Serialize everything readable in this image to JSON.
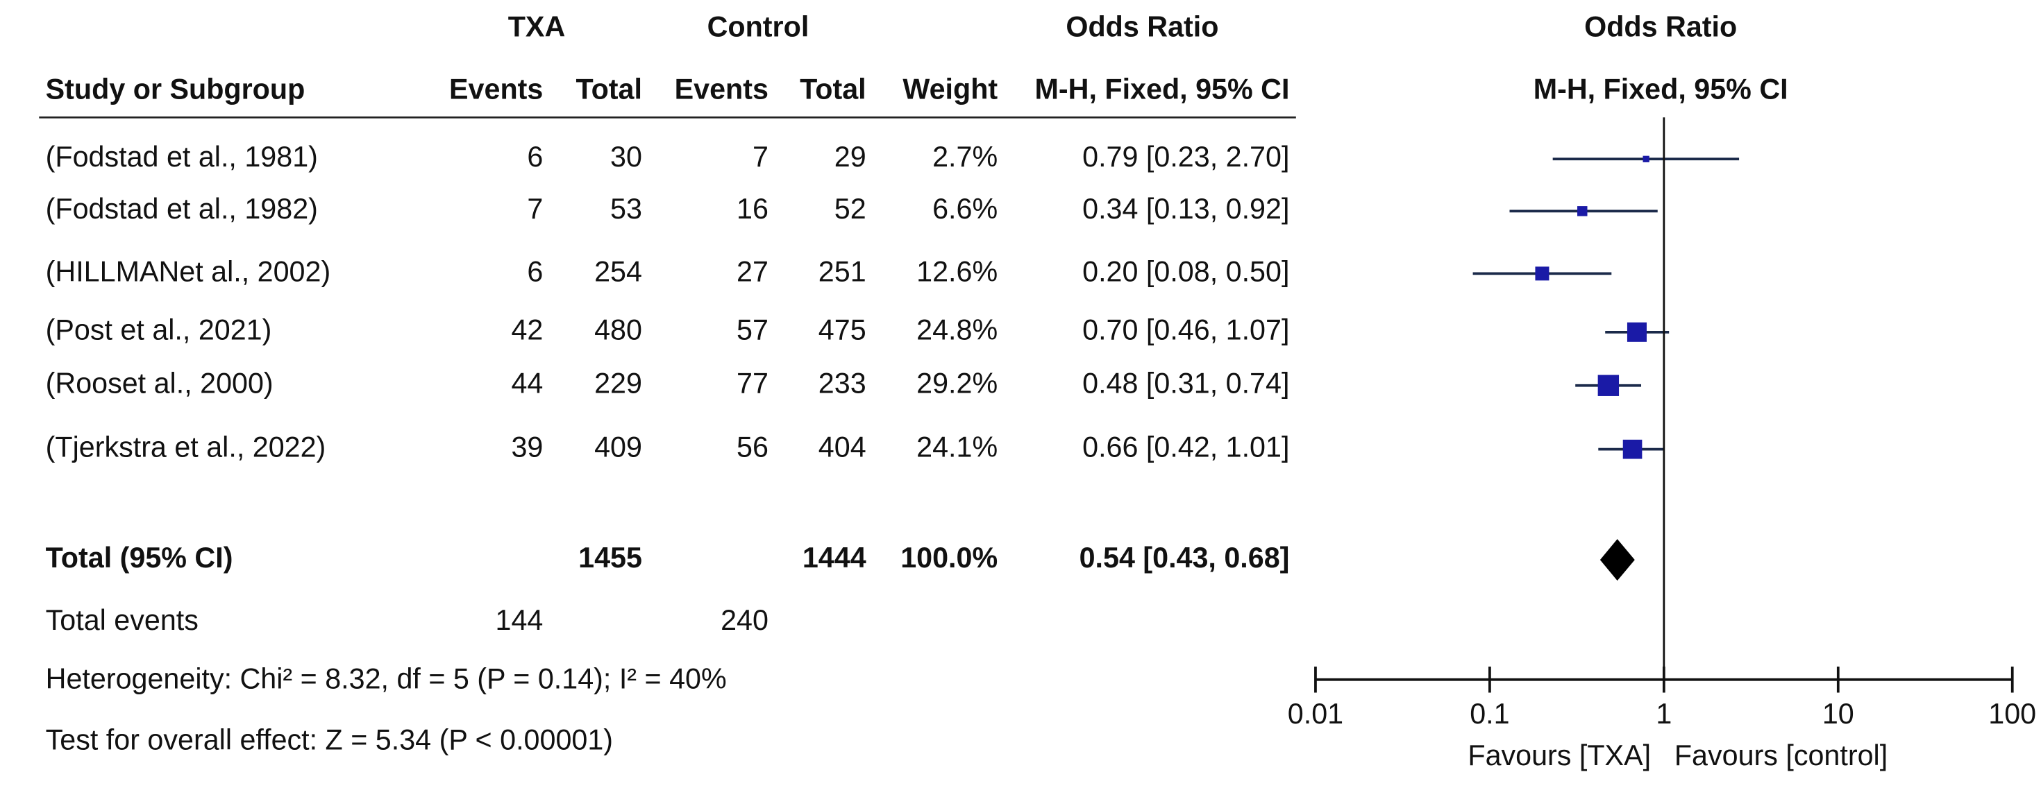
{
  "chart_data": {
    "type": "forest",
    "headers": {
      "group_txa": "TXA",
      "group_control": "Control",
      "effect_table": "Odds Ratio",
      "effect_plot": "Odds Ratio",
      "study": "Study or Subgroup",
      "txa_events": "Events",
      "txa_total": "Total",
      "control_events": "Events",
      "control_total": "Total",
      "weight": "Weight",
      "method_table": "M-H, Fixed, 95% CI",
      "method_plot": "M-H, Fixed, 95% CI"
    },
    "studies": [
      "(Fodstad et al., 1981)",
      "(Fodstad et al., 1982)",
      "(HILLMANet al., 2002)",
      "(Post et al., 2021)",
      "(Rooset al., 2000)",
      "(Tjerkstra et al., 2022)"
    ],
    "txa_events": [
      6,
      7,
      6,
      42,
      44,
      39
    ],
    "txa_total": [
      30,
      53,
      254,
      480,
      229,
      409
    ],
    "control_events": [
      7,
      16,
      27,
      57,
      77,
      56
    ],
    "control_total": [
      29,
      52,
      251,
      475,
      233,
      404
    ],
    "weights": [
      2.7,
      6.6,
      12.6,
      24.8,
      29.2,
      24.1
    ],
    "weight_labels": [
      "2.7%",
      "6.6%",
      "12.6%",
      "24.8%",
      "29.2%",
      "24.1%"
    ],
    "or": [
      0.79,
      0.34,
      0.2,
      0.7,
      0.48,
      0.66
    ],
    "ci_low": [
      0.23,
      0.13,
      0.08,
      0.46,
      0.31,
      0.42
    ],
    "ci_high": [
      2.7,
      0.92,
      0.5,
      1.07,
      0.74,
      1.01
    ],
    "or_labels": [
      "0.79 [0.23, 2.70]",
      "0.34 [0.13, 0.92]",
      "0.20 [0.08, 0.50]",
      "0.70 [0.46, 1.07]",
      "0.48 [0.31, 0.74]",
      "0.66 [0.42, 1.01]"
    ],
    "total": {
      "label": "Total (95% CI)",
      "txa_total": 1455,
      "control_total": 1444,
      "weight_label": "100.0%",
      "or": 0.54,
      "ci_low": 0.43,
      "ci_high": 0.68,
      "or_label": "0.54 [0.43, 0.68]"
    },
    "total_events": {
      "label": "Total events",
      "txa": 144,
      "control": 240
    },
    "heterogeneity": "Heterogeneity: Chi² = 8.32, df = 5 (P = 0.14); I² = 40%",
    "overall_effect": "Test for overall effect: Z = 5.34 (P < 0.00001)",
    "xscale": "log",
    "xlim": [
      0.01,
      100
    ],
    "xticks": [
      0.01,
      0.1,
      1,
      10,
      100
    ],
    "xlabel_left": "Favours [TXA]",
    "xlabel_right": "Favours [control]",
    "color": "#1a1aa6",
    "line_color": "#1b2a4a",
    "diamond_color": "#000000"
  }
}
